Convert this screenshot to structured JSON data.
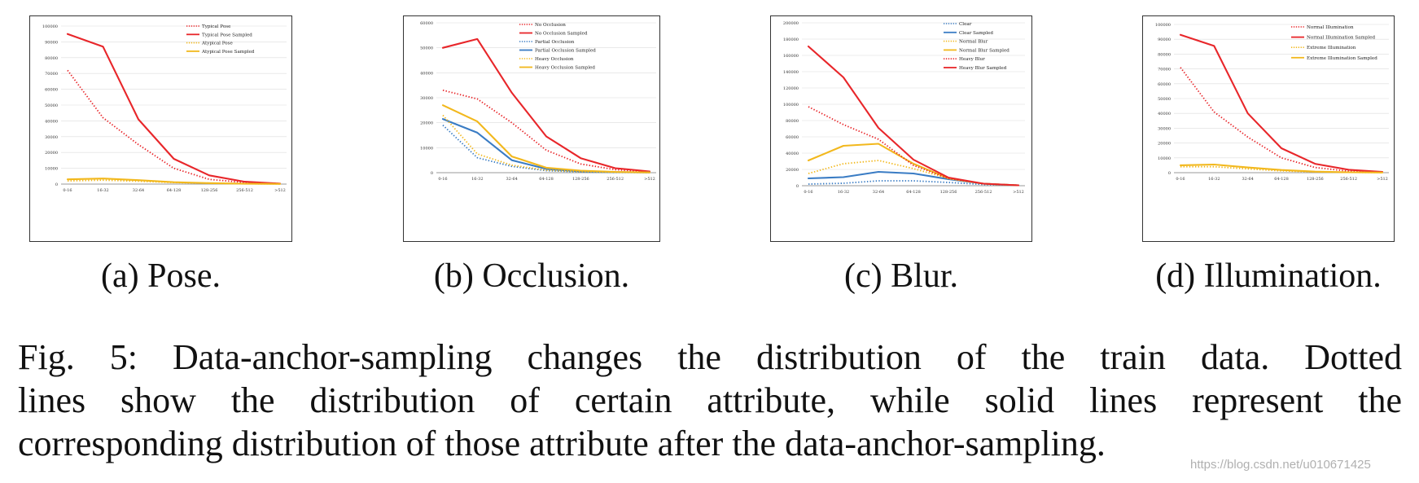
{
  "figure": {
    "caption_lines": [
      "Fig. 5: Data-anchor-sampling changes the distribution of the train data. Dotted",
      "lines show the distribution of certain attribute, while solid lines represent the",
      "corresponding distribution of those attribute after the data-anchor-sampling."
    ],
    "watermark": "https://blog.csdn.net/u010671425"
  },
  "chart_data": [
    {
      "type": "line",
      "subcaption": "(a) Pose.",
      "categories": [
        "0-16",
        "16-32",
        "32-64",
        "64-128",
        "128-256",
        "256-512",
        ">512"
      ],
      "yticks": [
        "0",
        "10000",
        "20000",
        "30000",
        "40000",
        "50000",
        "60000",
        "70000",
        "80000",
        "90000",
        "100000"
      ],
      "ylim": [
        0,
        100000
      ],
      "grid": true,
      "legend_position": "top-right",
      "series": [
        {
          "name": "Typical Pose",
          "color": "#e8262a",
          "style": "dotted",
          "values": [
            72000,
            42000,
            25000,
            10000,
            3000,
            1000,
            300
          ]
        },
        {
          "name": "Typical Pose Sampled",
          "color": "#e8262a",
          "style": "solid",
          "values": [
            95000,
            87000,
            41000,
            16000,
            5500,
            1500,
            300
          ]
        },
        {
          "name": "Atypical Pose",
          "color": "#f2b81d",
          "style": "dotted",
          "values": [
            2000,
            2500,
            1800,
            1000,
            500,
            200,
            100
          ]
        },
        {
          "name": "Atypical Pose Sampled",
          "color": "#f2b81d",
          "style": "solid",
          "values": [
            3000,
            3500,
            2500,
            1200,
            600,
            200,
            100
          ]
        }
      ]
    },
    {
      "type": "line",
      "subcaption": "(b) Occlusion.",
      "categories": [
        "0-16",
        "16-32",
        "32-64",
        "64-128",
        "128-256",
        "256-512",
        ">512"
      ],
      "yticks": [
        "0",
        "10000",
        "20000",
        "30000",
        "40000",
        "50000",
        "60000"
      ],
      "ylim": [
        0,
        60000
      ],
      "grid": true,
      "legend_position": "top-right",
      "series": [
        {
          "name": "No Occlusion",
          "color": "#e8262a",
          "style": "dotted",
          "values": [
            33000,
            29500,
            20000,
            9000,
            3500,
            1200,
            300
          ]
        },
        {
          "name": "No Occlusion Sampled",
          "color": "#e8262a",
          "style": "solid",
          "values": [
            50000,
            53500,
            32000,
            14500,
            5800,
            1800,
            500
          ]
        },
        {
          "name": "Partial Occlusion",
          "color": "#3a7cc4",
          "style": "dotted",
          "values": [
            19000,
            6000,
            2500,
            800,
            300,
            100,
            50
          ]
        },
        {
          "name": "Partial Occlusion Sampled",
          "color": "#3a7cc4",
          "style": "solid",
          "values": [
            21500,
            16000,
            5000,
            1500,
            500,
            200,
            100
          ]
        },
        {
          "name": "Heavy Occlusion",
          "color": "#f2b81d",
          "style": "dotted",
          "values": [
            23000,
            7500,
            3000,
            1000,
            400,
            150,
            50
          ]
        },
        {
          "name": "Heavy Occlusion Sampled",
          "color": "#f2b81d",
          "style": "solid",
          "values": [
            27000,
            20500,
            6500,
            2000,
            800,
            300,
            100
          ]
        }
      ]
    },
    {
      "type": "line",
      "subcaption": "(c) Blur.",
      "categories": [
        "0-16",
        "16-32",
        "32-64",
        "64-128",
        "128-256",
        "256-512",
        ">512"
      ],
      "yticks": [
        "0",
        "20000",
        "40000",
        "60000",
        "80000",
        "100000",
        "120000",
        "140000",
        "160000",
        "180000",
        "200000"
      ],
      "ylim": [
        0,
        200000
      ],
      "grid": true,
      "legend_position": "top-right",
      "series": [
        {
          "name": "Clear",
          "color": "#3a7cc4",
          "style": "dotted",
          "values": [
            2000,
            3000,
            6000,
            6000,
            4000,
            1500,
            500
          ]
        },
        {
          "name": "Clear Sampled",
          "color": "#3a7cc4",
          "style": "solid",
          "values": [
            9000,
            10500,
            17000,
            15000,
            8000,
            2500,
            500
          ]
        },
        {
          "name": "Normal Blur",
          "color": "#f2b81d",
          "style": "dotted",
          "values": [
            15000,
            27000,
            31000,
            21000,
            9000,
            2500,
            500
          ]
        },
        {
          "name": "Normal Blur Sampled",
          "color": "#f2b81d",
          "style": "solid",
          "values": [
            31000,
            49000,
            51500,
            27000,
            9000,
            2500,
            500
          ]
        },
        {
          "name": "Heavy Blur",
          "color": "#e8262a",
          "style": "dotted",
          "values": [
            97000,
            75000,
            57000,
            25000,
            9000,
            2500,
            500
          ]
        },
        {
          "name": "Heavy Blur Sampled",
          "color": "#e8262a",
          "style": "solid",
          "values": [
            171000,
            133000,
            71000,
            32000,
            10000,
            2500,
            500
          ]
        }
      ]
    },
    {
      "type": "line",
      "subcaption": "(d) Illumination.",
      "categories": [
        "0-16",
        "16-32",
        "32-64",
        "64-128",
        "128-256",
        "256-512",
        ">512"
      ],
      "yticks": [
        "0",
        "10000",
        "20000",
        "30000",
        "40000",
        "50000",
        "60000",
        "70000",
        "80000",
        "90000",
        "100000"
      ],
      "ylim": [
        0,
        100000
      ],
      "grid": true,
      "legend_position": "top-right",
      "series": [
        {
          "name": "Normal Illumination",
          "color": "#e8262a",
          "style": "dotted",
          "values": [
            71000,
            41000,
            24000,
            10000,
            3500,
            1000,
            300
          ]
        },
        {
          "name": "Normal Illumination Sampled",
          "color": "#e8262a",
          "style": "solid",
          "values": [
            93000,
            85500,
            40000,
            16500,
            6000,
            2000,
            500
          ]
        },
        {
          "name": "Extreme Illumination",
          "color": "#f2b81d",
          "style": "dotted",
          "values": [
            4000,
            4000,
            2500,
            1200,
            500,
            200,
            100
          ]
        },
        {
          "name": "Extreme Illumination Sampled",
          "color": "#f2b81d",
          "style": "solid",
          "values": [
            5000,
            5500,
            3500,
            1800,
            700,
            300,
            100
          ]
        }
      ]
    }
  ]
}
